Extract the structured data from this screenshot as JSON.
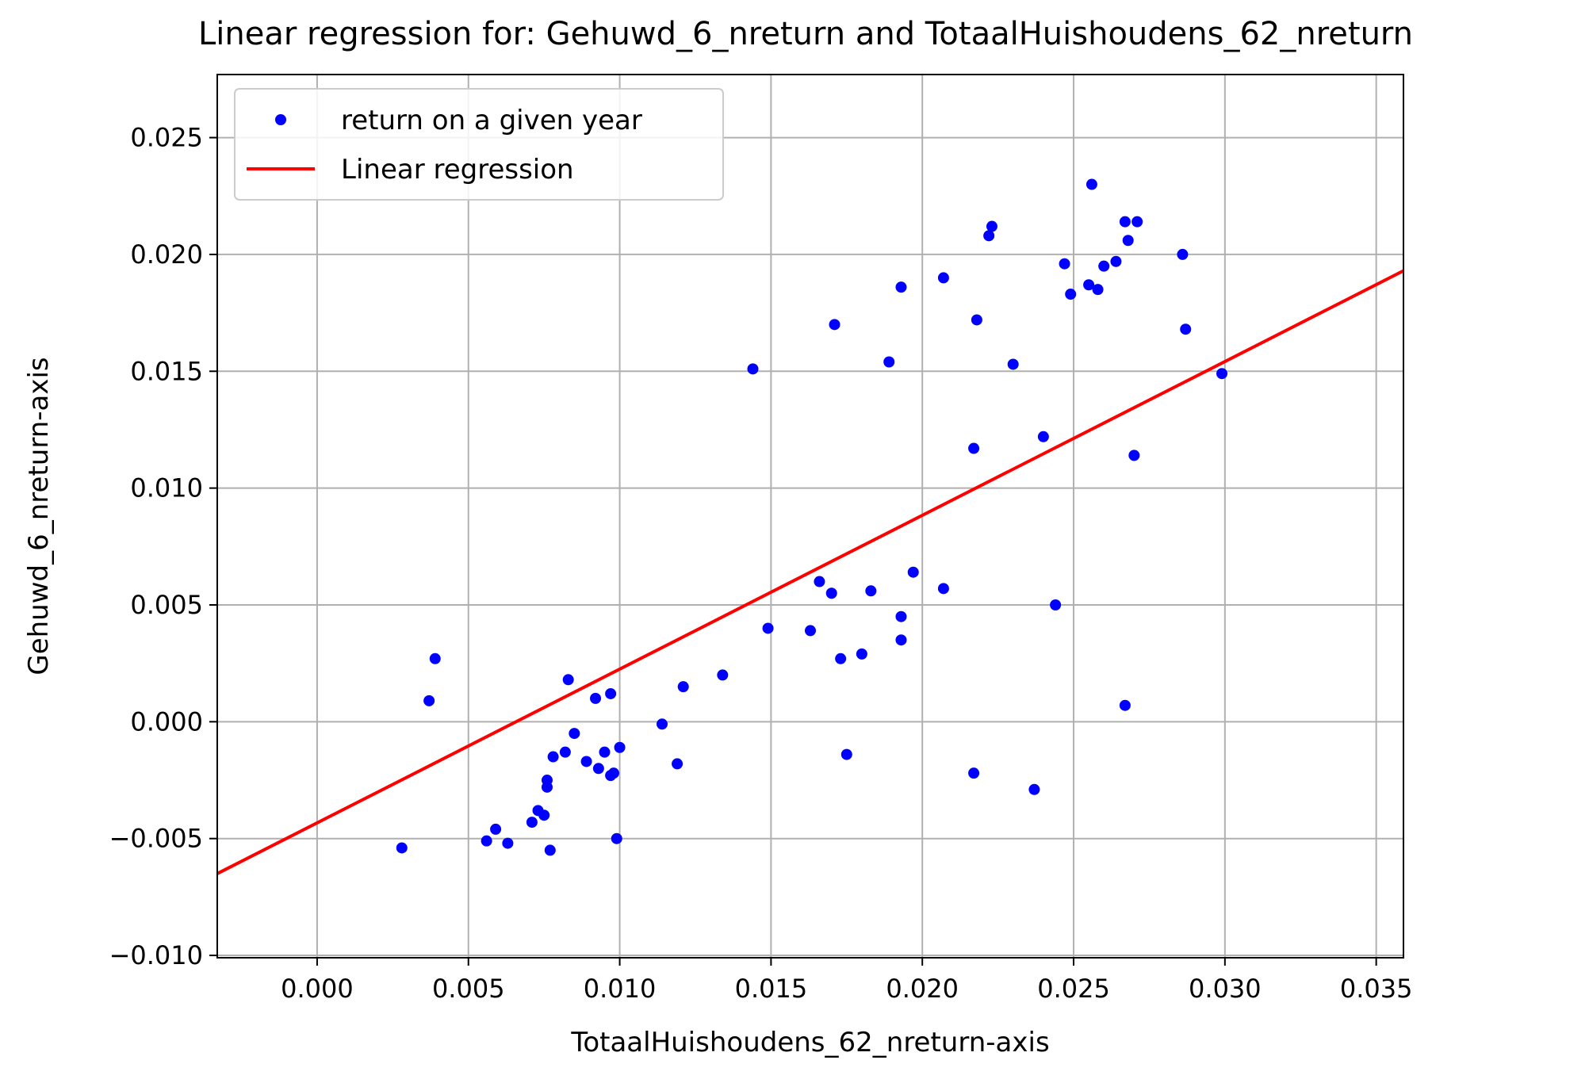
{
  "chart_data": {
    "type": "scatter",
    "title": "Linear regression for: Gehuwd_6_nreturn and TotaalHuishoudens_62_nreturn",
    "xlabel": "TotaalHuishoudens_62_nreturn-axis",
    "ylabel": "Gehuwd_6_nreturn-axis",
    "xlim": [
      -0.0033,
      0.0359
    ],
    "ylim": [
      -0.0101,
      0.0277
    ],
    "x_ticks": [
      0.0,
      0.005,
      0.01,
      0.015,
      0.02,
      0.025,
      0.03,
      0.035
    ],
    "x_tick_labels": [
      "0.000",
      "0.005",
      "0.010",
      "0.015",
      "0.020",
      "0.025",
      "0.030",
      "0.035"
    ],
    "y_ticks": [
      -0.01,
      -0.005,
      0.0,
      0.005,
      0.01,
      0.015,
      0.02,
      0.025
    ],
    "y_tick_labels": [
      "−0.010",
      "−0.005",
      "0.000",
      "0.005",
      "0.010",
      "0.015",
      "0.020",
      "0.025"
    ],
    "grid": true,
    "legend_position": "top-left",
    "series": [
      {
        "name": "return on a given year",
        "type": "scatter",
        "color": "#0000ff",
        "points": [
          {
            "x": 0.0028,
            "y": -0.0054
          },
          {
            "x": 0.0037,
            "y": 0.0009
          },
          {
            "x": 0.0039,
            "y": 0.0027
          },
          {
            "x": 0.0056,
            "y": -0.0051
          },
          {
            "x": 0.0059,
            "y": -0.0046
          },
          {
            "x": 0.0063,
            "y": -0.0052
          },
          {
            "x": 0.0071,
            "y": -0.0043
          },
          {
            "x": 0.0073,
            "y": -0.0038
          },
          {
            "x": 0.0075,
            "y": -0.004
          },
          {
            "x": 0.0076,
            "y": -0.0025
          },
          {
            "x": 0.0076,
            "y": -0.0028
          },
          {
            "x": 0.0077,
            "y": -0.0055
          },
          {
            "x": 0.0078,
            "y": -0.0015
          },
          {
            "x": 0.0082,
            "y": -0.0013
          },
          {
            "x": 0.0083,
            "y": 0.0018
          },
          {
            "x": 0.0085,
            "y": -0.0005
          },
          {
            "x": 0.0089,
            "y": -0.0017
          },
          {
            "x": 0.0092,
            "y": 0.001
          },
          {
            "x": 0.0093,
            "y": -0.002
          },
          {
            "x": 0.0095,
            "y": -0.0013
          },
          {
            "x": 0.0097,
            "y": -0.0023
          },
          {
            "x": 0.0097,
            "y": 0.0012
          },
          {
            "x": 0.0098,
            "y": -0.0022
          },
          {
            "x": 0.0099,
            "y": -0.005
          },
          {
            "x": 0.01,
            "y": -0.0011
          },
          {
            "x": 0.0114,
            "y": -0.0001
          },
          {
            "x": 0.0119,
            "y": -0.0018
          },
          {
            "x": 0.0121,
            "y": 0.0015
          },
          {
            "x": 0.0134,
            "y": 0.002
          },
          {
            "x": 0.0144,
            "y": 0.0151
          },
          {
            "x": 0.0149,
            "y": 0.004
          },
          {
            "x": 0.0163,
            "y": 0.0039
          },
          {
            "x": 0.0166,
            "y": 0.006
          },
          {
            "x": 0.017,
            "y": 0.0055
          },
          {
            "x": 0.0171,
            "y": 0.017
          },
          {
            "x": 0.0173,
            "y": 0.0027
          },
          {
            "x": 0.0175,
            "y": -0.0014
          },
          {
            "x": 0.018,
            "y": 0.0029
          },
          {
            "x": 0.0183,
            "y": 0.0056
          },
          {
            "x": 0.0189,
            "y": 0.0154
          },
          {
            "x": 0.0193,
            "y": 0.0186
          },
          {
            "x": 0.0193,
            "y": 0.0045
          },
          {
            "x": 0.0193,
            "y": 0.0035
          },
          {
            "x": 0.0197,
            "y": 0.0064
          },
          {
            "x": 0.0207,
            "y": 0.019
          },
          {
            "x": 0.0207,
            "y": 0.0057
          },
          {
            "x": 0.0217,
            "y": 0.0117
          },
          {
            "x": 0.0217,
            "y": -0.0022
          },
          {
            "x": 0.0218,
            "y": 0.0172
          },
          {
            "x": 0.0222,
            "y": 0.0208
          },
          {
            "x": 0.0223,
            "y": 0.0212
          },
          {
            "x": 0.023,
            "y": 0.0153
          },
          {
            "x": 0.0237,
            "y": -0.0029
          },
          {
            "x": 0.024,
            "y": 0.0122
          },
          {
            "x": 0.0244,
            "y": 0.005
          },
          {
            "x": 0.0247,
            "y": 0.0196
          },
          {
            "x": 0.0249,
            "y": 0.0183
          },
          {
            "x": 0.0255,
            "y": 0.0187
          },
          {
            "x": 0.0256,
            "y": 0.023
          },
          {
            "x": 0.0258,
            "y": 0.0185
          },
          {
            "x": 0.026,
            "y": 0.0195
          },
          {
            "x": 0.0264,
            "y": 0.0197
          },
          {
            "x": 0.0267,
            "y": 0.0214
          },
          {
            "x": 0.0267,
            "y": 0.0007
          },
          {
            "x": 0.0268,
            "y": 0.0206
          },
          {
            "x": 0.027,
            "y": 0.0114
          },
          {
            "x": 0.0271,
            "y": 0.0214
          },
          {
            "x": 0.0286,
            "y": 0.02
          },
          {
            "x": 0.0287,
            "y": 0.0168
          },
          {
            "x": 0.0299,
            "y": 0.0149
          }
        ]
      },
      {
        "name": "Linear regression",
        "type": "line",
        "color": "#ff0000",
        "x": [
          -0.0033,
          0.0359
        ],
        "y": [
          -0.0065,
          0.0193
        ]
      }
    ]
  }
}
